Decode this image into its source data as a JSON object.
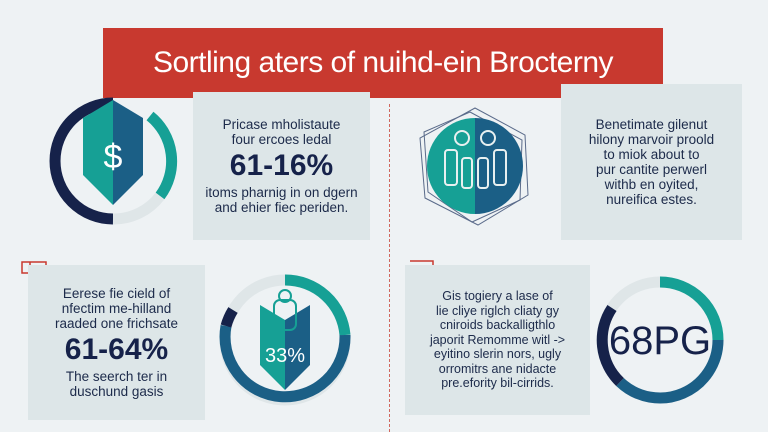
{
  "title": "Sortling aters of nuihd-ein Brocterny",
  "panels": [
    {
      "lines_top": [
        "Pricase mholistaute",
        "four ercoes ledal"
      ],
      "stat": "61-16%",
      "lines_bottom": [
        "itoms pharnig in on dgern",
        "and ehier fiec periden."
      ]
    },
    {
      "lines_top": [
        "Benetimate gilenut",
        "hilony marvoir proold",
        "to miok about to",
        "pur cantite perwerl",
        "withb en oyited,",
        "nureifica estes."
      ]
    },
    {
      "lines_top": [
        "Eerese fie cield of",
        "nfectim me-hilland",
        "raaded one frichsate"
      ],
      "stat": "61-64%",
      "lines_bottom": [
        "The seerch ter in",
        "duschund gasis"
      ]
    },
    {
      "lines_top": [
        "Gis togiery a lase of",
        "lie cliye riglch cliaty gy",
        "cniroids backalligthlo",
        "japorit Remomme witl ->",
        "eyitino slerin nors, ugly",
        "orromitrs ane nidacte",
        "pre.efority bil-cirrids."
      ]
    }
  ],
  "rings": [
    {
      "label": "",
      "icon": "shield-dollar-icon",
      "icon_text": "$"
    },
    {
      "label": "33%",
      "icon": "shield-figure-icon"
    },
    {
      "label": "68PG"
    }
  ],
  "colors": {
    "accent": "#c8392f",
    "teal": "#16a095",
    "navy": "#16224a",
    "blue": "#1b5f86",
    "light": "#dfe6e8"
  }
}
